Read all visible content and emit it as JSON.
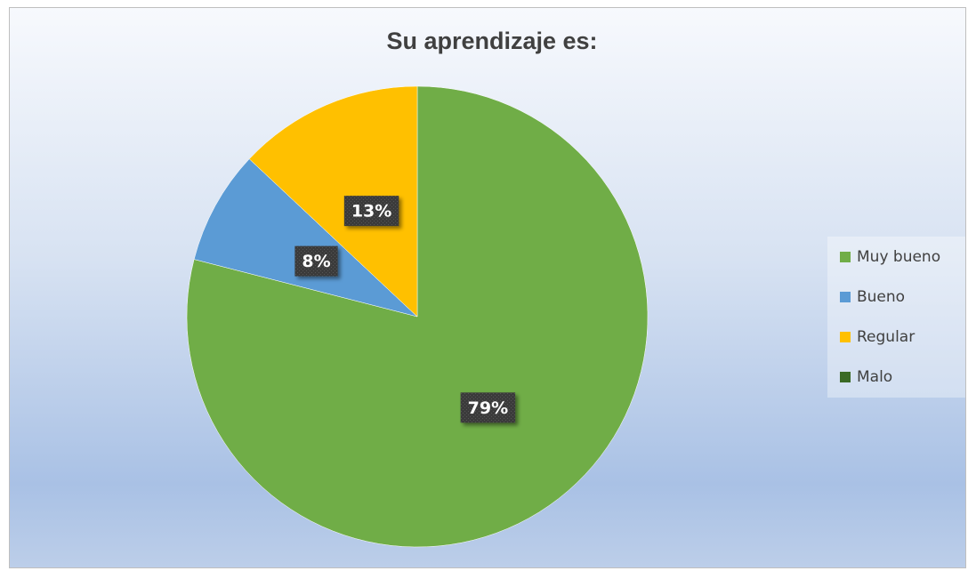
{
  "chart_data": {
    "type": "pie",
    "title": "Su aprendizaje es:",
    "categories": [
      "Muy bueno",
      "Bueno",
      "Regular",
      "Malo"
    ],
    "values": [
      79,
      8,
      13,
      0
    ],
    "value_labels": [
      "79%",
      "8%",
      "13%",
      null
    ],
    "colors": [
      "#70ad47",
      "#5b9bd5",
      "#ffc000",
      "#3b6a26"
    ],
    "legend": "right"
  }
}
